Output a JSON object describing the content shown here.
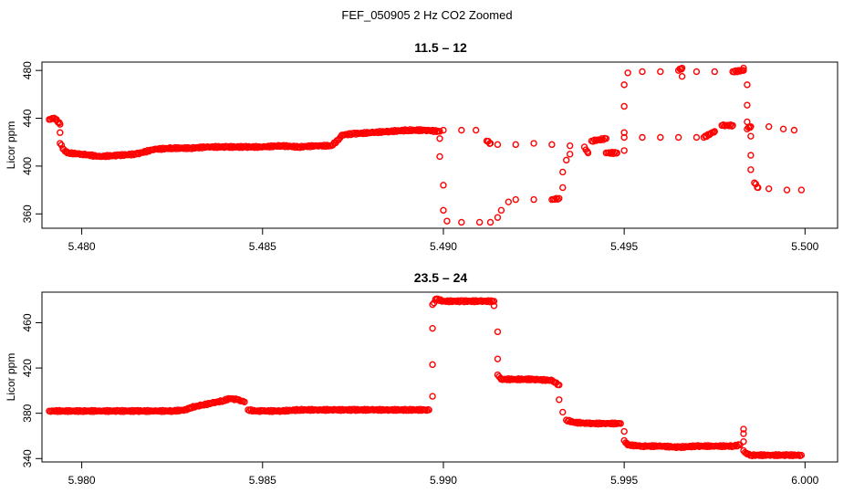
{
  "title": "FEF_050905  2 Hz CO2 Zoomed",
  "chart_data": [
    {
      "type": "scatter",
      "title": "11.5 – 12",
      "xlabel": "",
      "ylabel": "Licor ppm",
      "xlim": [
        5.4789,
        5.5009
      ],
      "ylim": [
        348,
        487
      ],
      "x_ticks": [
        5.48,
        5.485,
        5.49,
        5.495,
        5.5
      ],
      "x_tick_labels": [
        "5.480",
        "5.485",
        "5.490",
        "5.495",
        "5.500"
      ],
      "y_ticks": [
        360,
        400,
        440,
        480
      ],
      "y_tick_labels": [
        "360",
        "400",
        "440",
        "480"
      ],
      "color": "#ff0000",
      "marker": "open-circle",
      "grid": false,
      "points": [
        [
          5.4791,
          439
        ],
        [
          5.4792,
          440
        ],
        [
          5.4793,
          439
        ],
        [
          5.4794,
          435
        ],
        [
          5.4794,
          428
        ],
        [
          5.4794,
          419
        ],
        [
          5.4795,
          414
        ],
        [
          5.4796,
          411
        ],
        [
          5.48,
          410
        ],
        [
          5.4805,
          408
        ],
        [
          5.481,
          409
        ],
        [
          5.4815,
          410
        ],
        [
          5.482,
          414
        ],
        [
          5.4825,
          415
        ],
        [
          5.483,
          415
        ],
        [
          5.4835,
          416
        ],
        [
          5.484,
          416
        ],
        [
          5.4845,
          416
        ],
        [
          5.485,
          416
        ],
        [
          5.4855,
          417
        ],
        [
          5.486,
          416
        ],
        [
          5.4865,
          417
        ],
        [
          5.4869,
          417
        ],
        [
          5.4871,
          422
        ],
        [
          5.4872,
          426
        ],
        [
          5.4875,
          427
        ],
        [
          5.488,
          428
        ],
        [
          5.4885,
          429
        ],
        [
          5.489,
          430
        ],
        [
          5.4895,
          430
        ],
        [
          5.49,
          430
        ],
        [
          5.4905,
          430
        ],
        [
          5.4909,
          430
        ],
        [
          5.4912,
          421
        ],
        [
          5.4913,
          419
        ],
        [
          5.4915,
          418
        ],
        [
          5.492,
          418
        ],
        [
          5.4925,
          419
        ],
        [
          5.493,
          418
        ],
        [
          5.4935,
          417
        ],
        [
          5.4939,
          416
        ],
        [
          5.4941,
          421
        ],
        [
          5.4943,
          422
        ],
        [
          5.4945,
          423
        ],
        [
          5.495,
          424
        ],
        [
          5.4955,
          424
        ],
        [
          5.496,
          424
        ],
        [
          5.4965,
          424
        ],
        [
          5.497,
          424
        ],
        [
          5.4972,
          424
        ],
        [
          5.4975,
          429
        ],
        [
          5.4977,
          434
        ],
        [
          5.498,
          434
        ],
        [
          5.4985,
          433
        ],
        [
          5.499,
          433
        ],
        [
          5.4994,
          431
        ],
        [
          5.4997,
          430
        ],
        [
          5.4899,
          429
        ],
        [
          5.4899,
          423
        ],
        [
          5.4899,
          408
        ],
        [
          5.49,
          384
        ],
        [
          5.49,
          363
        ],
        [
          5.4901,
          354
        ],
        [
          5.4905,
          353
        ],
        [
          5.491,
          353
        ],
        [
          5.4913,
          353
        ],
        [
          5.4915,
          357
        ],
        [
          5.4916,
          363
        ],
        [
          5.4918,
          370
        ],
        [
          5.492,
          372
        ],
        [
          5.4925,
          372
        ],
        [
          5.493,
          372
        ],
        [
          5.4932,
          373
        ],
        [
          5.4933,
          382
        ],
        [
          5.4933,
          395
        ],
        [
          5.4934,
          405
        ],
        [
          5.4935,
          410
        ],
        [
          5.494,
          411
        ],
        [
          5.4945,
          411
        ],
        [
          5.4948,
          411
        ],
        [
          5.495,
          413
        ],
        [
          5.495,
          428
        ],
        [
          5.495,
          450
        ],
        [
          5.495,
          468
        ],
        [
          5.4951,
          478
        ],
        [
          5.4955,
          479
        ],
        [
          5.496,
          479
        ],
        [
          5.4965,
          480
        ],
        [
          5.4966,
          482
        ],
        [
          5.4966,
          475
        ],
        [
          5.497,
          479
        ],
        [
          5.4975,
          479
        ],
        [
          5.498,
          479
        ],
        [
          5.4983,
          480
        ],
        [
          5.4983,
          482
        ],
        [
          5.4984,
          468
        ],
        [
          5.4984,
          451
        ],
        [
          5.4984,
          437
        ],
        [
          5.4984,
          431
        ],
        [
          5.4985,
          425
        ],
        [
          5.4985,
          409
        ],
        [
          5.4985,
          397
        ],
        [
          5.4986,
          386
        ],
        [
          5.4987,
          382
        ],
        [
          5.499,
          381
        ],
        [
          5.4995,
          380
        ],
        [
          5.4999,
          380
        ]
      ]
    },
    {
      "type": "scatter",
      "title": "23.5 – 24",
      "xlabel": "",
      "ylabel": "Licor ppm",
      "xlim": [
        5.9789,
        6.0009
      ],
      "ylim": [
        337,
        487
      ],
      "x_ticks": [
        5.98,
        5.985,
        5.99,
        5.995,
        6.0
      ],
      "x_tick_labels": [
        "5.980",
        "5.985",
        "5.990",
        "5.995",
        "6.000"
      ],
      "y_ticks": [
        340,
        380,
        420,
        460
      ],
      "y_tick_labels": [
        "340",
        "380",
        "420",
        "460"
      ],
      "color": "#ff0000",
      "marker": "open-circle",
      "grid": false,
      "points": [
        [
          5.9791,
          382
        ],
        [
          5.9795,
          382
        ],
        [
          5.98,
          382
        ],
        [
          5.9805,
          382
        ],
        [
          5.981,
          382
        ],
        [
          5.9815,
          382
        ],
        [
          5.982,
          382
        ],
        [
          5.9825,
          382
        ],
        [
          5.9829,
          383
        ],
        [
          5.983,
          385
        ],
        [
          5.9833,
          387
        ],
        [
          5.9836,
          389
        ],
        [
          5.9839,
          391
        ],
        [
          5.9841,
          393
        ],
        [
          5.9843,
          392
        ],
        [
          5.9845,
          390
        ],
        [
          5.9846,
          383
        ],
        [
          5.9848,
          382
        ],
        [
          5.985,
          382
        ],
        [
          5.9855,
          382
        ],
        [
          5.986,
          383
        ],
        [
          5.9865,
          383
        ],
        [
          5.987,
          383
        ],
        [
          5.9875,
          383
        ],
        [
          5.988,
          383
        ],
        [
          5.9885,
          383
        ],
        [
          5.989,
          383
        ],
        [
          5.9895,
          383
        ],
        [
          5.9896,
          383
        ],
        [
          5.9897,
          395
        ],
        [
          5.9897,
          423
        ],
        [
          5.9897,
          455
        ],
        [
          5.9897,
          476
        ],
        [
          5.9898,
          481
        ],
        [
          5.99,
          479
        ],
        [
          5.9905,
          479
        ],
        [
          5.991,
          479
        ],
        [
          5.9914,
          479
        ],
        [
          5.9914,
          475
        ],
        [
          5.9915,
          452
        ],
        [
          5.9915,
          428
        ],
        [
          5.9915,
          414
        ],
        [
          5.9916,
          410
        ],
        [
          5.992,
          410
        ],
        [
          5.9925,
          410
        ],
        [
          5.993,
          409
        ],
        [
          5.9932,
          405
        ],
        [
          5.9932,
          392
        ],
        [
          5.9933,
          381
        ],
        [
          5.9934,
          374
        ],
        [
          5.9936,
          372
        ],
        [
          5.994,
          371
        ],
        [
          5.9945,
          371
        ],
        [
          5.9949,
          371
        ],
        [
          5.995,
          364
        ],
        [
          5.995,
          356
        ],
        [
          5.9951,
          352
        ],
        [
          5.9955,
          351
        ],
        [
          5.996,
          351
        ],
        [
          5.9965,
          350
        ],
        [
          5.997,
          351
        ],
        [
          5.9975,
          351
        ],
        [
          5.998,
          351
        ],
        [
          5.9982,
          352
        ],
        [
          5.9983,
          366
        ],
        [
          5.9983,
          362
        ],
        [
          5.9983,
          355
        ],
        [
          5.9983,
          347
        ],
        [
          5.9984,
          344
        ],
        [
          5.9985,
          343
        ],
        [
          5.999,
          343
        ],
        [
          5.9995,
          343
        ],
        [
          5.9999,
          343
        ]
      ]
    }
  ]
}
